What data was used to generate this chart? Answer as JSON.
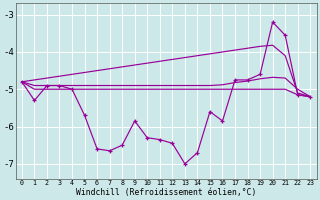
{
  "background_color": "#cce8e8",
  "grid_color": "#ffffff",
  "line_color": "#990099",
  "xlabel": "Windchill (Refroidissement éolien,°C)",
  "x_hours": [
    0,
    1,
    2,
    3,
    4,
    5,
    6,
    7,
    8,
    9,
    10,
    11,
    12,
    13,
    14,
    15,
    16,
    17,
    18,
    19,
    20,
    21,
    22,
    23
  ],
  "main_y": [
    -4.8,
    -5.3,
    -4.9,
    -4.9,
    -5.0,
    -5.7,
    -6.6,
    -6.65,
    -6.5,
    -5.85,
    -6.3,
    -6.35,
    -6.45,
    -7.0,
    -6.7,
    -5.6,
    -5.85,
    -4.75,
    -4.75,
    -4.6,
    -3.2,
    -3.55,
    -5.15,
    -5.2
  ],
  "upper_y": [
    -4.8,
    -4.75,
    -4.7,
    -4.65,
    -4.6,
    -4.55,
    -4.5,
    -4.45,
    -4.4,
    -4.35,
    -4.3,
    -4.25,
    -4.2,
    -4.15,
    -4.1,
    -4.05,
    -4.0,
    -3.95,
    -3.9,
    -3.85,
    -3.82,
    -4.1,
    -5.1,
    -5.2
  ],
  "mid1_y": [
    -4.8,
    -4.9,
    -4.9,
    -4.9,
    -4.9,
    -4.9,
    -4.9,
    -4.9,
    -4.9,
    -4.9,
    -4.9,
    -4.9,
    -4.9,
    -4.9,
    -4.9,
    -4.9,
    -4.88,
    -4.82,
    -4.78,
    -4.72,
    -4.68,
    -4.7,
    -5.0,
    -5.2
  ],
  "flat_y": [
    -4.8,
    -5.0,
    -5.0,
    -5.0,
    -5.0,
    -5.0,
    -5.0,
    -5.0,
    -5.0,
    -5.0,
    -5.0,
    -5.0,
    -5.0,
    -5.0,
    -5.0,
    -5.0,
    -5.0,
    -5.0,
    -5.0,
    -5.0,
    -5.0,
    -5.0,
    -5.15,
    -5.2
  ],
  "ylim": [
    -7.4,
    -2.7
  ],
  "yticks": [
    -7,
    -6,
    -5,
    -4,
    -3
  ],
  "xlim": [
    -0.5,
    23.5
  ]
}
